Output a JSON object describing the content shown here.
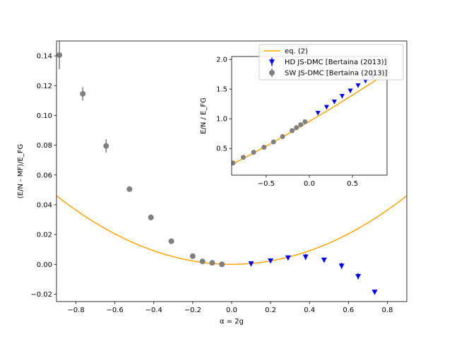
{
  "chart_data": [
    {
      "id": "main",
      "type": "scatter",
      "xlabel": "α = 2g",
      "ylabel": "(E/N - MF)/E_FG",
      "xlim": [
        -0.9,
        0.9
      ],
      "ylim": [
        -0.025,
        0.15
      ],
      "xticks": [
        -0.8,
        -0.6,
        -0.4,
        -0.2,
        0.0,
        0.2,
        0.4,
        0.6,
        0.8
      ],
      "xtick_labels": [
        "−0.8",
        "−0.6",
        "−0.4",
        "−0.2",
        "0.0",
        "0.2",
        "0.4",
        "0.6",
        "0.8"
      ],
      "yticks": [
        -0.02,
        0.0,
        0.02,
        0.04,
        0.06,
        0.08,
        0.1,
        0.12,
        0.14
      ],
      "ytick_labels": [
        "−0.02",
        "0.00",
        "0.02",
        "0.04",
        "0.06",
        "0.08",
        "0.10",
        "0.12",
        "0.14"
      ],
      "grid": false,
      "curve": {
        "name": "eq. (2)",
        "color": "#ffa500",
        "formula": "0.0569*x^2"
      },
      "series": [
        {
          "name": "HD JS-DMC [Bertaina (2013)]",
          "marker": "triangle-down",
          "color": "#0000ff",
          "x": [
            0.1,
            0.2,
            0.29,
            0.38,
            0.475,
            0.565,
            0.65,
            0.735
          ],
          "y": [
            0.0005,
            0.0025,
            0.0045,
            0.005,
            0.003,
            -0.001,
            -0.008,
            -0.0185
          ],
          "yerr": [
            0.0005,
            0.001,
            0.0015,
            0.002,
            0.0012,
            0.002,
            0.002,
            0.0008
          ]
        },
        {
          "name": "SW JS-DMC [Bertaina (2013)]",
          "marker": "circle",
          "color": "#808080",
          "x": [
            -0.885,
            -0.765,
            -0.645,
            -0.525,
            -0.415,
            -0.31,
            -0.2,
            -0.15,
            -0.1,
            -0.05
          ],
          "y": [
            0.1405,
            0.1145,
            0.0795,
            0.0505,
            0.0315,
            0.0155,
            0.0055,
            0.002,
            0.001,
            0.0
          ],
          "yerr": [
            0.0095,
            0.0045,
            0.0045,
            0.0015,
            0.002,
            0.0015,
            0.0005,
            0.001,
            0.0015,
            0.0005
          ]
        }
      ]
    },
    {
      "id": "inset",
      "type": "scatter",
      "xlabel": "",
      "ylabel": "E/N / E_FG",
      "xlim": [
        -0.9,
        0.9
      ],
      "ylim": [
        0.05,
        2.05
      ],
      "xticks": [
        -0.5,
        0.0,
        0.5
      ],
      "xtick_labels": [
        "−0.5",
        "0.0",
        "0.5"
      ],
      "yticks": [
        0.5,
        1.0,
        1.5,
        2.0
      ],
      "ytick_labels": [
        "0.5",
        "1.0",
        "1.5",
        "2.0"
      ],
      "grid": false,
      "curve": {
        "name": "eq. (2)",
        "color": "#ffa500",
        "formula": "1 + x + 0.0569*x^2 (approx.)"
      },
      "series": [
        {
          "name": "HD JS-DMC [Bertaina (2013)]",
          "marker": "triangle-down",
          "color": "#0000ff",
          "x": [
            0.1,
            0.2,
            0.29,
            0.38,
            0.475,
            0.565,
            0.65,
            0.735
          ],
          "y": [
            1.1,
            1.2,
            1.29,
            1.385,
            1.475,
            1.565,
            1.64,
            1.715
          ]
        },
        {
          "name": "SW JS-DMC [Bertaina (2013)]",
          "marker": "circle",
          "color": "#808080",
          "x": [
            -0.885,
            -0.765,
            -0.645,
            -0.525,
            -0.415,
            -0.31,
            -0.2,
            -0.15,
            -0.1,
            -0.05
          ],
          "y": [
            0.255,
            0.35,
            0.435,
            0.52,
            0.61,
            0.7,
            0.8,
            0.85,
            0.9,
            0.95
          ]
        }
      ]
    }
  ],
  "legend": {
    "placement": "top-right",
    "entries": [
      {
        "label": "eq. (2)",
        "kind": "line",
        "color": "#ffa500"
      },
      {
        "label": "HD JS-DMC [Bertaina (2013)]",
        "kind": "triangle-down",
        "color": "#0000ff"
      },
      {
        "label": "SW JS-DMC [Bertaina (2013)]",
        "kind": "circle",
        "color": "#808080"
      }
    ]
  }
}
